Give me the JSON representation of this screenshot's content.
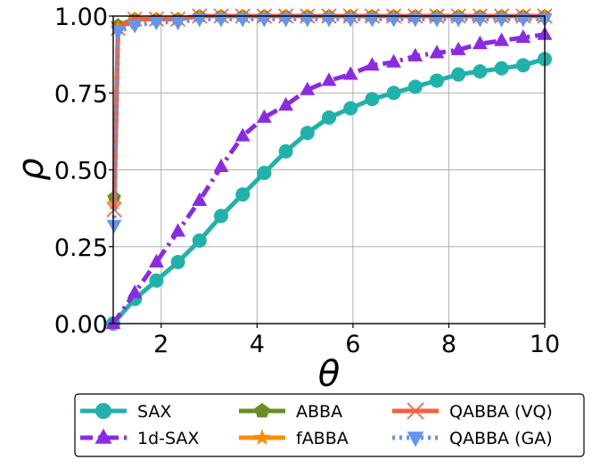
{
  "chart_data": {
    "type": "line",
    "title": "",
    "xlabel": "θ",
    "ylabel": "ρ",
    "xlim": [
      1,
      10
    ],
    "ylim": [
      0,
      1
    ],
    "grid": true,
    "legend_position": "bottom",
    "x_ticks": [
      2,
      4,
      6,
      8,
      10
    ],
    "x_tick_labels": [
      "2",
      "4",
      "6",
      "8",
      "10"
    ],
    "y_ticks": [
      0,
      0.25,
      0.5,
      0.75,
      1.0
    ],
    "y_tick_labels": [
      "0.00",
      "0.25",
      "0.50",
      "0.75",
      "1.00"
    ],
    "series": [
      {
        "name": "SAX",
        "color": "#20b2aa",
        "marker": "circle",
        "line": "solid",
        "x": [
          1.0,
          1.45,
          1.9,
          2.35,
          2.8,
          3.25,
          3.7,
          4.15,
          4.6,
          5.05,
          5.5,
          5.95,
          6.4,
          6.85,
          7.3,
          7.75,
          8.2,
          8.65,
          9.1,
          9.55,
          10.0
        ],
        "y": [
          0.0,
          0.08,
          0.14,
          0.2,
          0.27,
          0.35,
          0.42,
          0.49,
          0.56,
          0.62,
          0.67,
          0.7,
          0.73,
          0.75,
          0.77,
          0.79,
          0.81,
          0.82,
          0.83,
          0.84,
          0.86
        ]
      },
      {
        "name": "1d-SAX",
        "color": "#8a2be2",
        "marker": "triangle-up",
        "line": "dashdot",
        "x": [
          1.0,
          1.45,
          1.9,
          2.35,
          2.8,
          3.25,
          3.7,
          4.15,
          4.6,
          5.05,
          5.5,
          5.95,
          6.4,
          6.85,
          7.3,
          7.75,
          8.2,
          8.65,
          9.1,
          9.55,
          10.0
        ],
        "y": [
          0.0,
          0.1,
          0.2,
          0.3,
          0.4,
          0.51,
          0.61,
          0.67,
          0.71,
          0.76,
          0.79,
          0.81,
          0.84,
          0.85,
          0.87,
          0.88,
          0.89,
          0.91,
          0.92,
          0.93,
          0.94
        ]
      },
      {
        "name": "ABBA",
        "color": "#6b8e23",
        "marker": "pentagon",
        "line": "solid",
        "x": [
          1.02,
          1.1,
          1.45,
          1.9,
          2.35,
          2.8,
          3.25,
          3.7,
          4.15,
          4.6,
          5.05,
          5.5,
          5.95,
          6.4,
          6.85,
          7.3,
          7.75,
          8.2,
          8.65,
          9.1,
          9.55,
          10.0
        ],
        "y": [
          0.41,
          0.97,
          0.99,
          0.99,
          0.99,
          1.0,
          1.0,
          1.0,
          1.0,
          1.0,
          1.0,
          1.0,
          1.0,
          1.0,
          1.0,
          1.0,
          1.0,
          1.0,
          1.0,
          1.0,
          1.0,
          1.0
        ]
      },
      {
        "name": "fABBA",
        "color": "#ff8c00",
        "marker": "star",
        "line": "solid",
        "x": [
          1.02,
          1.1,
          1.45,
          1.9,
          2.35,
          2.8,
          3.25,
          3.7,
          4.15,
          4.6,
          5.05,
          5.5,
          5.95,
          6.4,
          6.85,
          7.3,
          7.75,
          8.2,
          8.65,
          9.1,
          9.55,
          10.0
        ],
        "y": [
          0.39,
          0.96,
          0.99,
          0.99,
          0.99,
          1.0,
          1.0,
          1.0,
          1.0,
          1.0,
          1.0,
          1.0,
          1.0,
          1.0,
          1.0,
          1.0,
          1.0,
          1.0,
          1.0,
          1.0,
          1.0,
          1.0
        ]
      },
      {
        "name": "QABBA (VQ)",
        "color": "#f4603e",
        "marker": "x",
        "line": "solid",
        "x": [
          1.02,
          1.1,
          1.45,
          1.9,
          2.35,
          2.8,
          3.25,
          3.7,
          4.15,
          4.6,
          5.05,
          5.5,
          5.95,
          6.4,
          6.85,
          7.3,
          7.75,
          8.2,
          8.65,
          9.1,
          9.55,
          10.0
        ],
        "y": [
          0.37,
          0.96,
          0.99,
          0.99,
          0.99,
          1.0,
          1.0,
          1.0,
          1.0,
          1.0,
          1.0,
          1.0,
          1.0,
          1.0,
          1.0,
          1.0,
          1.0,
          1.0,
          1.0,
          1.0,
          1.0,
          1.0
        ]
      },
      {
        "name": "QABBA (GA)",
        "color": "#6495ed",
        "marker": "triangle-down",
        "line": "dotted",
        "x": [
          1.02,
          1.1,
          1.45,
          1.9,
          2.35,
          2.8,
          3.25,
          3.7,
          4.15,
          4.6,
          5.05,
          5.5,
          5.95,
          6.4,
          6.85,
          7.3,
          7.75,
          8.2,
          8.65,
          9.1,
          9.55,
          10.0
        ],
        "y": [
          0.32,
          0.95,
          0.97,
          0.98,
          0.98,
          0.99,
          0.99,
          0.99,
          0.99,
          0.99,
          0.99,
          0.99,
          0.99,
          0.99,
          0.99,
          0.99,
          0.99,
          0.99,
          0.99,
          0.99,
          0.99,
          0.99
        ]
      }
    ]
  }
}
